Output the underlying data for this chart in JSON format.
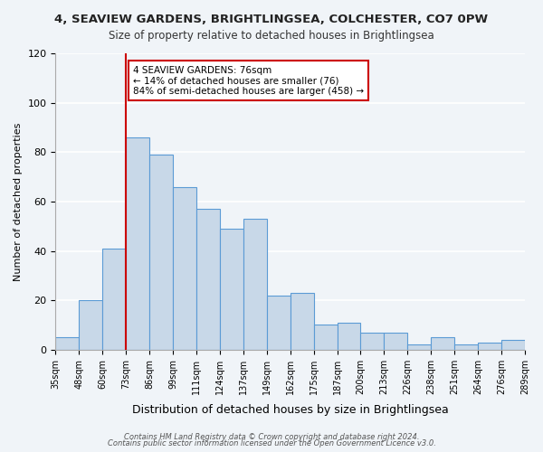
{
  "title_line1": "4, SEAVIEW GARDENS, BRIGHTLINGSEA, COLCHESTER, CO7 0PW",
  "title_line2": "Size of property relative to detached houses in Brightlingsea",
  "xlabel": "Distribution of detached houses by size in Brightlingsea",
  "ylabel": "Number of detached properties",
  "bin_labels": [
    "35sqm",
    "48sqm",
    "60sqm",
    "73sqm",
    "86sqm",
    "99sqm",
    "111sqm",
    "124sqm",
    "137sqm",
    "149sqm",
    "162sqm",
    "175sqm",
    "187sqm",
    "200sqm",
    "213sqm",
    "226sqm",
    "238sqm",
    "251sqm",
    "264sqm",
    "276sqm",
    "289sqm"
  ],
  "bar_heights": [
    5,
    20,
    41,
    86,
    79,
    66,
    57,
    49,
    53,
    22,
    23,
    10,
    11,
    7,
    7,
    2,
    5,
    2,
    3,
    4
  ],
  "bar_color": "#c8d8e8",
  "bar_edge_color": "#5b9bd5",
  "vline_x": 3,
  "vline_color": "#cc0000",
  "annotation_box_text": "4 SEAVIEW GARDENS: 76sqm\n← 14% of detached houses are smaller (76)\n84% of semi-detached houses are larger (458) →",
  "annotation_box_color": "#cc0000",
  "ylim": [
    0,
    120
  ],
  "yticks": [
    0,
    20,
    40,
    60,
    80,
    100,
    120
  ],
  "footer_line1": "Contains HM Land Registry data © Crown copyright and database right 2024.",
  "footer_line2": "Contains public sector information licensed under the Open Government Licence v3.0.",
  "background_color": "#f0f4f8",
  "grid_color": "#ffffff"
}
